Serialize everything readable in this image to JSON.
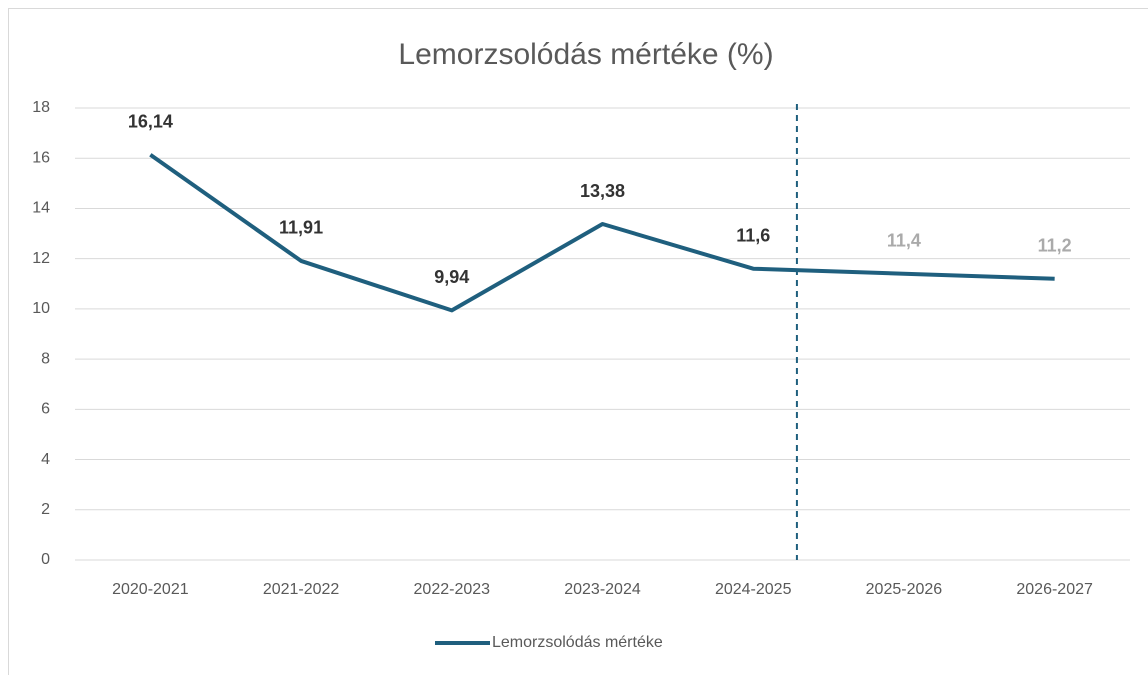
{
  "chart_data": {
    "type": "line",
    "title": "Lemorzsolódás mértéke (%)",
    "categories": [
      "2020-2021",
      "2021-2022",
      "2022-2023",
      "2023-2024",
      "2024-2025",
      "2025-2026",
      "2026-2027"
    ],
    "series": [
      {
        "name": "Lemorzsolódás mértéke",
        "color": "#1f5f7e",
        "values": [
          16.14,
          11.91,
          9.94,
          13.38,
          11.6,
          11.4,
          11.2
        ],
        "value_labels": [
          "16,14",
          "11,91",
          "9,94",
          "13,38",
          "11,6",
          "11,4",
          "11,2"
        ],
        "value_label_colors": [
          "#333333",
          "#333333",
          "#333333",
          "#333333",
          "#333333",
          "#aaaaaa",
          "#aaaaaa"
        ]
      }
    ],
    "ylim": [
      0,
      18
    ],
    "yticks": [
      0,
      2,
      4,
      6,
      8,
      10,
      12,
      14,
      16,
      18
    ],
    "grid": true,
    "legend": "bottom"
  }
}
